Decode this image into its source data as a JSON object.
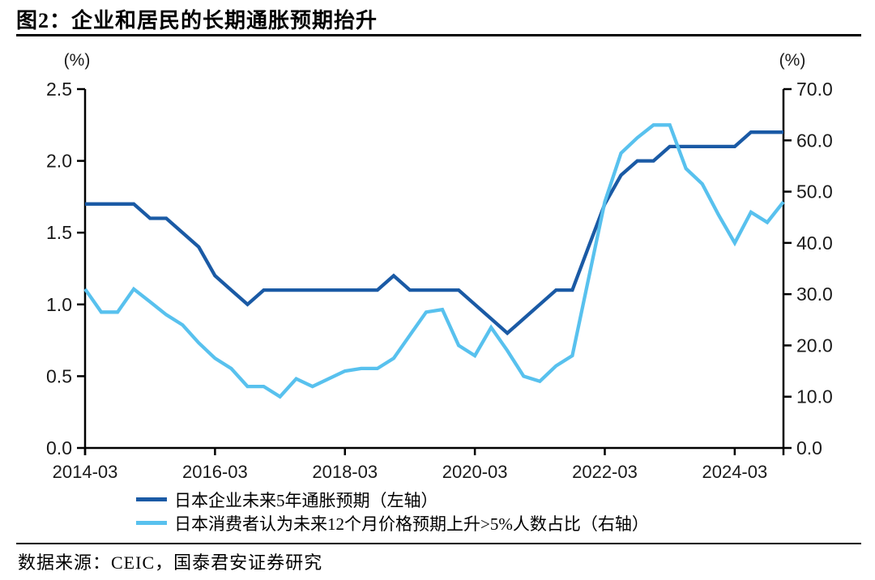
{
  "header": {
    "title": "图2：企业和居民的长期通胀预期抬升"
  },
  "footer": {
    "source": "数据来源：CEIC，国泰君安证券研究"
  },
  "chart_data": {
    "type": "line",
    "title": "企业和居民的长期通胀预期抬升",
    "left_axis": {
      "unit": "(%)",
      "min": 0,
      "max": 2.5,
      "ticks": [
        "2.5",
        "2.0",
        "1.5",
        "1.0",
        "0.5",
        "0.0"
      ]
    },
    "right_axis": {
      "unit": "(%)",
      "min": 0,
      "max": 70,
      "ticks": [
        "70.0",
        "60.0",
        "50.0",
        "40.0",
        "30.0",
        "20.0",
        "10.0",
        "0.0"
      ]
    },
    "x_ticks": [
      "2014-03",
      "2016-03",
      "2018-03",
      "2020-03",
      "2022-03",
      "2024-03"
    ],
    "x_tick_step": 8,
    "grid": "off",
    "legend_position": "bottom",
    "categories": [
      "2014-03",
      "2014-06",
      "2014-09",
      "2014-12",
      "2015-03",
      "2015-06",
      "2015-09",
      "2015-12",
      "2016-03",
      "2016-06",
      "2016-09",
      "2016-12",
      "2017-03",
      "2017-06",
      "2017-09",
      "2017-12",
      "2018-03",
      "2018-06",
      "2018-09",
      "2018-12",
      "2019-03",
      "2019-06",
      "2019-09",
      "2019-12",
      "2020-03",
      "2020-06",
      "2020-09",
      "2020-12",
      "2021-03",
      "2021-06",
      "2021-09",
      "2021-12",
      "2022-03",
      "2022-06",
      "2022-09",
      "2022-12",
      "2023-03",
      "2023-06",
      "2023-09",
      "2023-12",
      "2024-03",
      "2024-06",
      "2024-09",
      "2024-12"
    ],
    "series": [
      {
        "name": "日本企业未来5年通胀预期（左轴）",
        "axis": "left",
        "color": "#1a5aa5",
        "values": [
          1.7,
          1.7,
          1.7,
          1.7,
          1.6,
          1.6,
          1.5,
          1.4,
          1.2,
          1.1,
          1.0,
          1.1,
          1.1,
          1.1,
          1.1,
          1.1,
          1.1,
          1.1,
          1.1,
          1.2,
          1.1,
          1.1,
          1.1,
          1.1,
          1.0,
          0.9,
          0.8,
          0.9,
          1.0,
          1.1,
          1.1,
          1.4,
          1.7,
          1.9,
          2.0,
          2.0,
          2.1,
          2.1,
          2.1,
          2.1,
          2.1,
          2.2,
          2.2,
          2.2
        ]
      },
      {
        "name": "日本消费者认为未来12个月价格预期上升>5%人数占比（右轴）",
        "axis": "right",
        "color": "#58c1ee",
        "values": [
          31,
          26.5,
          26.5,
          31,
          28.5,
          26,
          24,
          20.5,
          17.5,
          15.5,
          12,
          12,
          10,
          13.5,
          12,
          13.5,
          15,
          15.5,
          15.5,
          17.5,
          22,
          26.5,
          27,
          20,
          18,
          23.5,
          19,
          14,
          13,
          16,
          18,
          33,
          48,
          57.5,
          60.5,
          63,
          63,
          54.5,
          51.5,
          45.5,
          40,
          46,
          44,
          48
        ]
      }
    ]
  }
}
